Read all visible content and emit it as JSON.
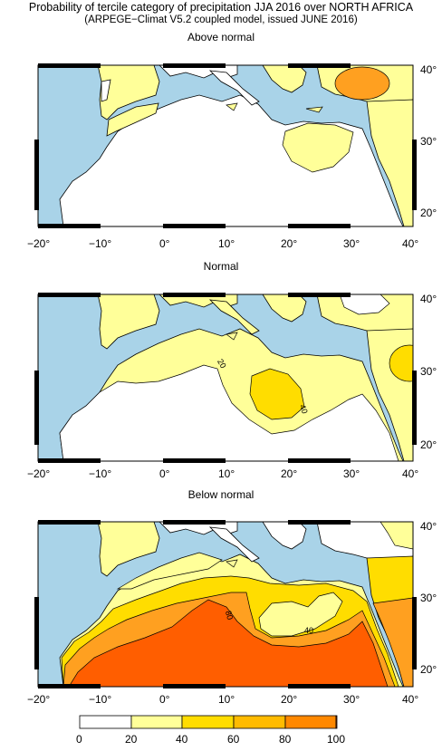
{
  "title": {
    "line1": "Probability of tercile category of precipitation JJA 2016 over NORTH AFRICA",
    "line2": "(ARPEGE−Climat V5.2 coupled model, issued JUNE 2016)"
  },
  "panels": [
    {
      "label": "Above normal"
    },
    {
      "label": "Normal"
    },
    {
      "label": "Below normal"
    }
  ],
  "axes": {
    "x_ticks": [
      "−20°",
      "−10°",
      "0°",
      "10°",
      "20°",
      "30°",
      "40°"
    ],
    "y_ticks": [
      "40°",
      "30°",
      "20°"
    ]
  },
  "contour_labels": {
    "normal": [
      "20",
      "40"
    ],
    "below": [
      "80",
      "40"
    ]
  },
  "colorbar": {
    "ticks": [
      "0",
      "20",
      "40",
      "60",
      "80",
      "100"
    ],
    "colors": [
      "#ffffff",
      "#ffff99",
      "#ffdd00",
      "#ffbb00",
      "#ff8800",
      "#ff5500"
    ]
  },
  "colors": {
    "sea": "#a9d3e8",
    "land_low": "#ffffff",
    "p20_40": "#ffff99",
    "p40_60": "#ffdd00",
    "p60_80": "#ffa020",
    "p80_100": "#ff5e00"
  }
}
